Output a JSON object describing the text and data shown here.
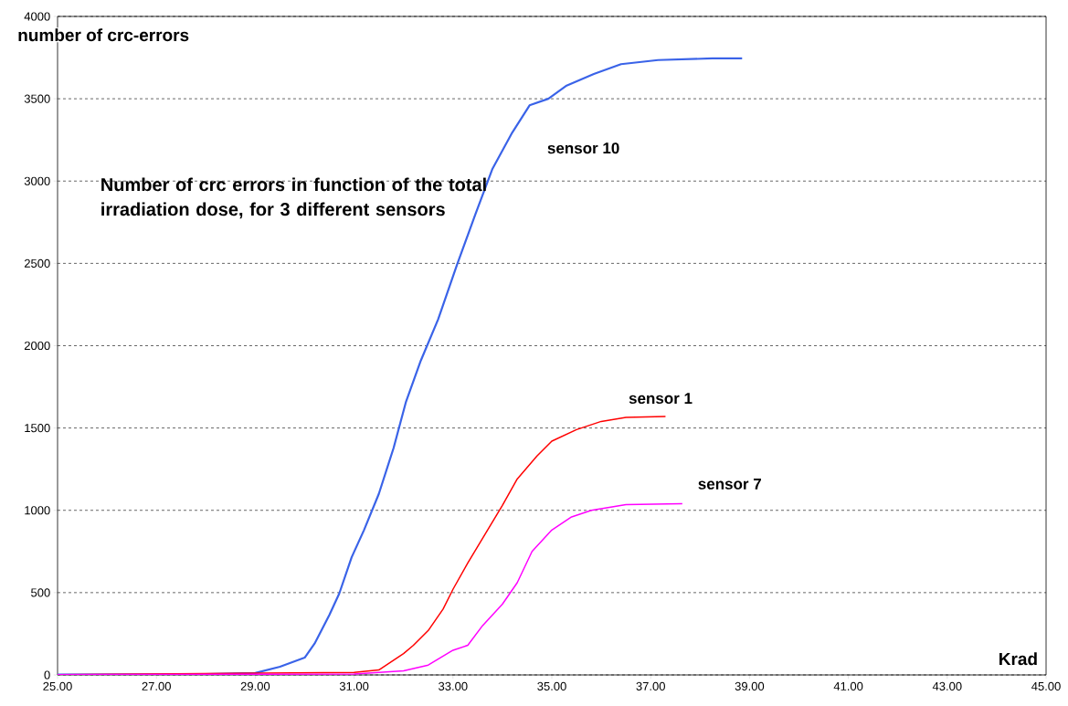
{
  "chart_data": {
    "type": "line",
    "title": "Number of crc errors in function of the total irradiation dose, for 3 different sensors",
    "xlabel": "Krad",
    "ylabel": "number of crc-errors",
    "xlim": [
      25,
      45
    ],
    "ylim": [
      0,
      4000
    ],
    "xticks": [
      {
        "value": 25,
        "label": "25.00"
      },
      {
        "value": 27,
        "label": "27.00"
      },
      {
        "value": 29,
        "label": "29.00"
      },
      {
        "value": 31,
        "label": "31.00"
      },
      {
        "value": 33,
        "label": "33.00"
      },
      {
        "value": 35,
        "label": "35.00"
      },
      {
        "value": 37,
        "label": "37.00"
      },
      {
        "value": 39,
        "label": "39.00"
      },
      {
        "value": 41,
        "label": "41.00"
      },
      {
        "value": 43,
        "label": "43.00"
      },
      {
        "value": 45,
        "label": "45.00"
      }
    ],
    "yticks": [
      0,
      500,
      1000,
      1500,
      2000,
      2500,
      3000,
      3500,
      4000
    ],
    "grid": "y",
    "line_style": "solid",
    "marker": "none",
    "series": [
      {
        "name": "sensor 10",
        "color": "#3a63e8",
        "x": [
          25,
          27,
          28,
          29,
          29.5,
          30,
          30.2,
          30.5,
          30.7,
          30.95,
          31.2,
          31.5,
          31.8,
          32.05,
          32.35,
          32.7,
          33.08,
          33.45,
          33.8,
          34.2,
          34.55,
          34.93,
          35.3,
          35.85,
          36.4,
          37.15,
          38.25,
          38.85
        ],
        "values": [
          2,
          3,
          5,
          12,
          50,
          105,
          190,
          365,
          495,
          715,
          880,
          1100,
          1380,
          1660,
          1910,
          2160,
          2490,
          2795,
          3075,
          3295,
          3460,
          3500,
          3580,
          3650,
          3710,
          3735,
          3745,
          3745
        ]
      },
      {
        "name": "sensor 1",
        "color": "#ff0000",
        "x": [
          25,
          30,
          31,
          31.5,
          32,
          32.2,
          32.5,
          32.8,
          33,
          33.3,
          33.6,
          34,
          34.3,
          34.7,
          35,
          35.5,
          36,
          36.5,
          37.3
        ],
        "values": [
          2,
          null,
          15,
          30,
          130,
          180,
          270,
          400,
          520,
          680,
          830,
          1030,
          1190,
          1330,
          1420,
          1490,
          1540,
          1565,
          1570
        ]
      },
      {
        "name": "sensor 7",
        "color": "#ff00ff",
        "x": [
          25,
          31,
          32,
          32.5,
          33,
          33.3,
          33.6,
          34,
          34.3,
          34.6,
          35,
          35.4,
          35.8,
          36.5,
          37.64
        ],
        "values": [
          2,
          5,
          25,
          60,
          150,
          180,
          300,
          430,
          560,
          750,
          880,
          960,
          1000,
          1035,
          1040
        ]
      }
    ]
  }
}
